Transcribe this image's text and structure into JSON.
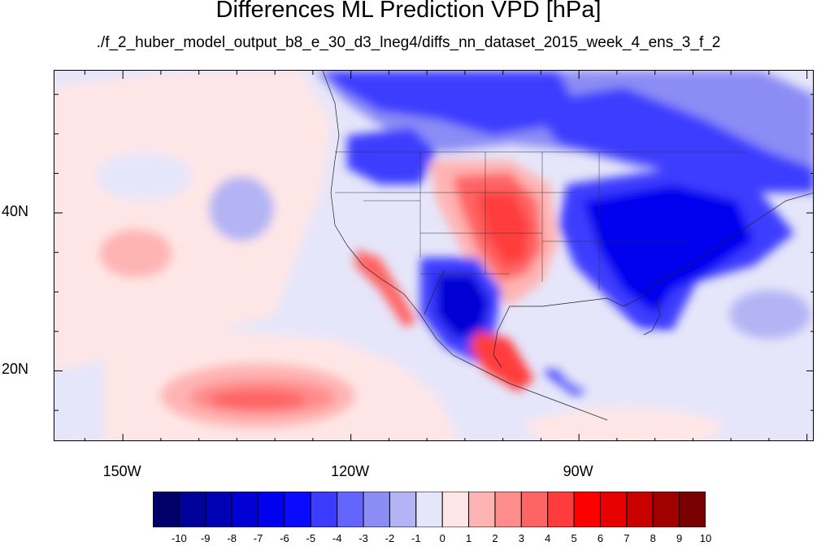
{
  "title": "Differences ML Prediction VPD [hPa]",
  "subtitle": "./f_2_huber_model_output_b8_e_30_d3_lneg4/diffs_nn_dataset_2015_week_4_ens_3_f_2",
  "map": {
    "lat_labels": [
      {
        "label": "40N",
        "lat": 40
      },
      {
        "label": "20N",
        "lat": 20
      }
    ],
    "lon_labels": [
      {
        "label": "150W",
        "lon": -150
      },
      {
        "label": "120W",
        "lon": -120
      },
      {
        "label": "90W",
        "lon": -90
      }
    ],
    "lon_range": [
      -159,
      -59
    ],
    "lat_range": [
      11,
      58
    ]
  },
  "colorbar": {
    "labels": [
      "-10",
      "-9",
      "-8",
      "-7",
      "-6",
      "-5",
      "-4",
      "-3",
      "-2",
      "-1",
      "0",
      "1",
      "2",
      "3",
      "4",
      "5",
      "6",
      "7",
      "8",
      "9",
      "10"
    ],
    "colors": [
      "#00006b",
      "#00009a",
      "#0000b4",
      "#0000d4",
      "#0000ee",
      "#0a0aff",
      "#3c3cff",
      "#6464ff",
      "#8c8cf5",
      "#b4b4f5",
      "#e6e6fa",
      "#ffe6e6",
      "#ffb4b4",
      "#ff8c8c",
      "#ff6464",
      "#ff3c3c",
      "#ff0000",
      "#e60000",
      "#c80000",
      "#a00000",
      "#780000"
    ]
  }
}
